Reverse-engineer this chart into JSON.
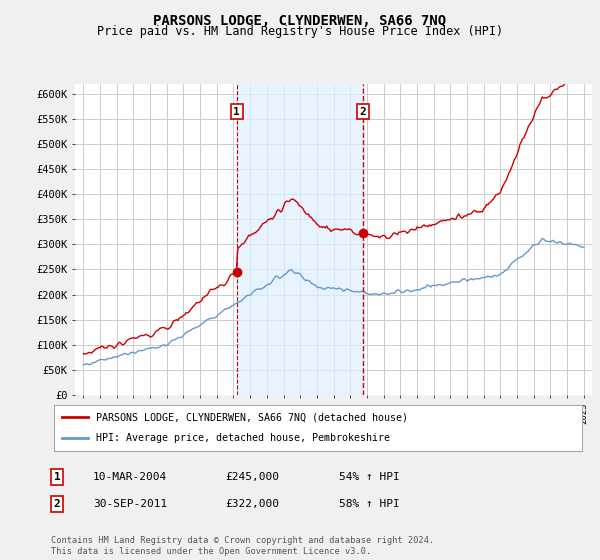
{
  "title": "PARSONS LODGE, CLYNDERWEN, SA66 7NQ",
  "subtitle": "Price paid vs. HM Land Registry's House Price Index (HPI)",
  "legend_line1": "PARSONS LODGE, CLYNDERWEN, SA66 7NQ (detached house)",
  "legend_line2": "HPI: Average price, detached house, Pembrokeshire",
  "footnote": "Contains HM Land Registry data © Crown copyright and database right 2024.\nThis data is licensed under the Open Government Licence v3.0.",
  "red_color": "#cc0000",
  "blue_color": "#6699cc",
  "shade_color": "#ddeeff",
  "marker1_year": 2004.19,
  "marker2_year": 2011.75,
  "marker1_label": "1",
  "marker2_label": "2",
  "sale1_price": 245000,
  "sale2_price": 322000,
  "table_rows": [
    {
      "num": "1",
      "date": "10-MAR-2004",
      "price": "£245,000",
      "pct": "54% ↑ HPI"
    },
    {
      "num": "2",
      "date": "30-SEP-2011",
      "price": "£322,000",
      "pct": "58% ↑ HPI"
    }
  ],
  "ylim": [
    0,
    620000
  ],
  "yticks": [
    0,
    50000,
    100000,
    150000,
    200000,
    250000,
    300000,
    350000,
    400000,
    450000,
    500000,
    550000,
    600000
  ],
  "ytick_labels": [
    "£0",
    "£50K",
    "£100K",
    "£150K",
    "£200K",
    "£250K",
    "£300K",
    "£350K",
    "£400K",
    "£450K",
    "£500K",
    "£550K",
    "£600K"
  ],
  "xlim_start": 1994.5,
  "xlim_end": 2025.5,
  "background_color": "#f0f0f0",
  "plot_bg_color": "#ffffff",
  "grid_color": "#cccccc"
}
